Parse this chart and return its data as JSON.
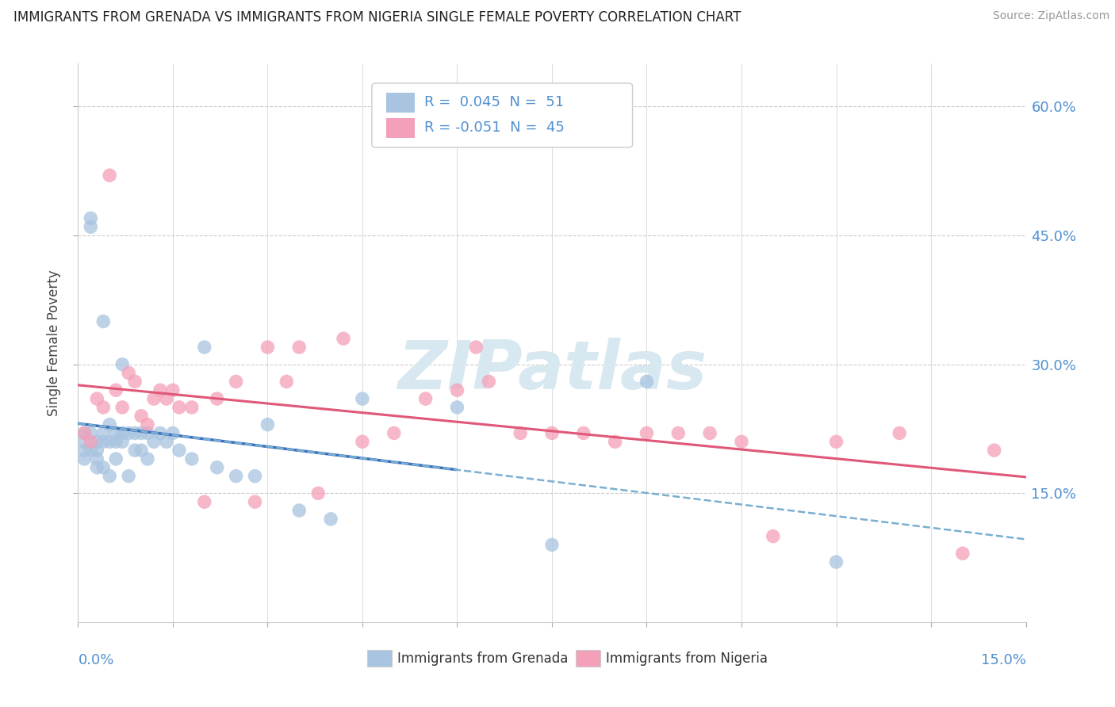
{
  "title": "IMMIGRANTS FROM GRENADA VS IMMIGRANTS FROM NIGERIA SINGLE FEMALE POVERTY CORRELATION CHART",
  "source": "Source: ZipAtlas.com",
  "ylabel": "Single Female Poverty",
  "grenada_color": "#a8c4e0",
  "nigeria_color": "#f4a0b8",
  "grenada_line_color": "#3a6fbf",
  "nigeria_line_color": "#e05878",
  "grenada_dash_color": "#7aafd0",
  "label_color": "#5090d0",
  "watermark_color": "#d8e8f0",
  "xmin": 0.0,
  "xmax": 0.15,
  "ymin": 0.0,
  "ymax": 0.65,
  "legend1_r": "0.045",
  "legend1_n": "51",
  "legend2_r": "-0.051",
  "legend2_n": "45",
  "grenada_x": [
    0.001,
    0.001,
    0.001,
    0.001,
    0.002,
    0.002,
    0.002,
    0.002,
    0.003,
    0.003,
    0.003,
    0.003,
    0.004,
    0.004,
    0.004,
    0.004,
    0.005,
    0.005,
    0.005,
    0.006,
    0.006,
    0.006,
    0.007,
    0.007,
    0.007,
    0.008,
    0.008,
    0.009,
    0.009,
    0.01,
    0.01,
    0.011,
    0.011,
    0.012,
    0.013,
    0.014,
    0.015,
    0.016,
    0.018,
    0.02,
    0.022,
    0.025,
    0.028,
    0.03,
    0.035,
    0.04,
    0.045,
    0.06,
    0.075,
    0.09,
    0.12
  ],
  "grenada_y": [
    0.22,
    0.21,
    0.2,
    0.19,
    0.47,
    0.46,
    0.22,
    0.2,
    0.21,
    0.2,
    0.19,
    0.18,
    0.35,
    0.22,
    0.21,
    0.18,
    0.23,
    0.21,
    0.17,
    0.22,
    0.21,
    0.19,
    0.3,
    0.22,
    0.21,
    0.22,
    0.17,
    0.22,
    0.2,
    0.22,
    0.2,
    0.22,
    0.19,
    0.21,
    0.22,
    0.21,
    0.22,
    0.2,
    0.19,
    0.32,
    0.18,
    0.17,
    0.17,
    0.23,
    0.13,
    0.12,
    0.26,
    0.25,
    0.09,
    0.28,
    0.07
  ],
  "nigeria_x": [
    0.001,
    0.002,
    0.003,
    0.004,
    0.005,
    0.006,
    0.007,
    0.008,
    0.009,
    0.01,
    0.011,
    0.012,
    0.013,
    0.014,
    0.015,
    0.016,
    0.018,
    0.02,
    0.022,
    0.025,
    0.028,
    0.03,
    0.033,
    0.035,
    0.038,
    0.042,
    0.045,
    0.05,
    0.055,
    0.06,
    0.063,
    0.065,
    0.07,
    0.075,
    0.08,
    0.085,
    0.09,
    0.095,
    0.1,
    0.105,
    0.11,
    0.12,
    0.13,
    0.14,
    0.145
  ],
  "nigeria_y": [
    0.22,
    0.21,
    0.26,
    0.25,
    0.52,
    0.27,
    0.25,
    0.29,
    0.28,
    0.24,
    0.23,
    0.26,
    0.27,
    0.26,
    0.27,
    0.25,
    0.25,
    0.14,
    0.26,
    0.28,
    0.14,
    0.32,
    0.28,
    0.32,
    0.15,
    0.33,
    0.21,
    0.22,
    0.26,
    0.27,
    0.32,
    0.28,
    0.22,
    0.22,
    0.22,
    0.21,
    0.22,
    0.22,
    0.22,
    0.21,
    0.1,
    0.21,
    0.22,
    0.08,
    0.2
  ]
}
